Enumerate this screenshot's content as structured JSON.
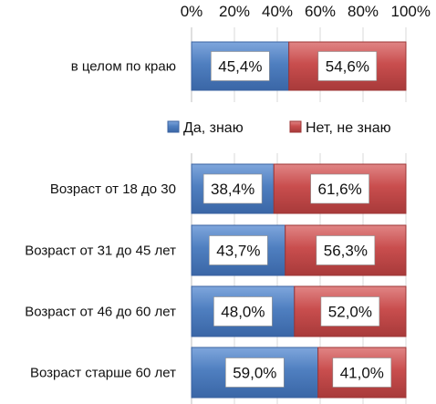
{
  "chart_data": {
    "type": "bar",
    "orientation": "horizontal",
    "stacked": "percent",
    "x_ticks": [
      "0%",
      "20%",
      "40%",
      "60%",
      "80%",
      "100%"
    ],
    "xlim": [
      0,
      100
    ],
    "grid": true,
    "legend_position": "between-groups",
    "categories": [
      "в целом по краю",
      "Возраст от 18 до 30",
      "Возраст от 31 до 45 лет",
      "Возраст от 46 до 60 лет",
      "Возраст старше 60 лет"
    ],
    "series": [
      {
        "name": "Да, знаю",
        "color": "#4F7FC0",
        "values": [
          45.4,
          38.4,
          43.7,
          48.0,
          59.0
        ],
        "labels": [
          "45,4%",
          "38,4%",
          "43,7%",
          "48,0%",
          "59,0%"
        ]
      },
      {
        "name": "Нет, не знаю",
        "color": "#C94E4E",
        "values": [
          54.6,
          61.6,
          56.3,
          52.0,
          41.0
        ],
        "labels": [
          "54,6%",
          "61,6%",
          "56,3%",
          "52,0%",
          "41,0%"
        ]
      }
    ]
  }
}
